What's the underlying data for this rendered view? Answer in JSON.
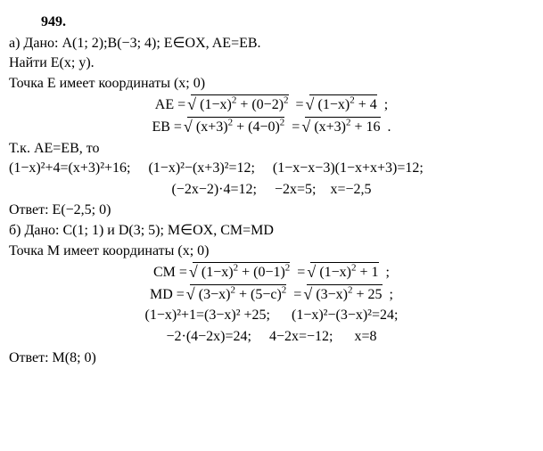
{
  "title": "949.",
  "a": {
    "given": "а) Дано: A(1; 2);B(−3; 4); E∈OX, AE=EB.",
    "find": "Найти E(x; y).",
    "pointE": "Точка E имеет координаты (x; 0)",
    "eq_ae_prefix": "AE = ",
    "eq_ae_rad1": "(1−x)² + (0−2)²",
    "eq_ae_rad2": "(1−x)² + 4",
    "eq_eb_prefix": "EB = ",
    "eq_eb_rad1": "(x+3)² + (4−0)²",
    "eq_eb_rad2": "(x+3)² + 16",
    "since": "Т.к. AE=EB, то",
    "row1a": "(1−x)²+4=(x+3)²+16;",
    "row1b": "(1−x)²−(x+3)²=12;",
    "row1c": "(1−x−x−3)(1−x+x+3)=12;",
    "row2a": "(−2x−2)·4=12;",
    "row2b": "−2x=5;",
    "row2c": "x=−2,5",
    "answer": "Ответ: E(−2,5; 0)"
  },
  "b": {
    "given": "б) Дано: C(1; 1) и D(3; 5); M∈OX, CM=MD",
    "pointM": "Точка M имеет координаты (x; 0)",
    "eq_cm_prefix": "CM = ",
    "eq_cm_rad1": "(1−x)² + (0−1)²",
    "eq_cm_rad2": "(1−x)² + 1",
    "eq_md_prefix": "MD = ",
    "eq_md_rad1": "(3−x)² + (5−c)²",
    "eq_md_rad2": "(3−x)² + 25",
    "row1a": "(1−x)²+1=(3−x)² +25;",
    "row1b": "(1−x)²−(3−x)²=24;",
    "row2a": "−2·(4−2x)=24;",
    "row2b": "4−2x=−12;",
    "row2c": "x=8",
    "answer": "Ответ: M(8; 0)"
  }
}
